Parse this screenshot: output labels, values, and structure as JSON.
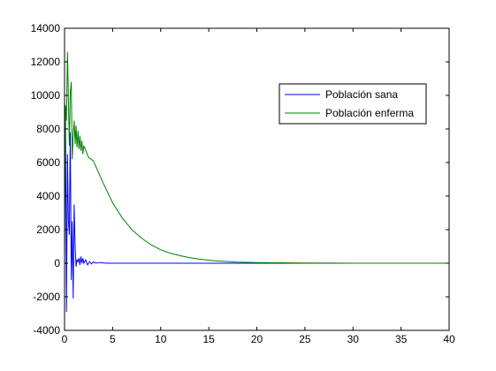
{
  "chart_data": {
    "type": "line",
    "title": "",
    "xlabel": "",
    "ylabel": "",
    "xlim": [
      0,
      40
    ],
    "ylim": [
      -4000,
      14000
    ],
    "xticks": [
      0,
      5,
      10,
      15,
      20,
      25,
      30,
      35,
      40
    ],
    "yticks": [
      -4000,
      -2000,
      0,
      2000,
      4000,
      6000,
      8000,
      10000,
      12000,
      14000
    ],
    "grid": false,
    "legend_position": "top-right",
    "series": [
      {
        "name": "Población sana",
        "color": "#0000ff",
        "x": [
          0,
          0.1,
          0.2,
          0.3,
          0.4,
          0.5,
          0.6,
          0.7,
          0.8,
          0.9,
          1.0,
          1.1,
          1.2,
          1.3,
          1.4,
          1.5,
          1.6,
          1.7,
          1.8,
          1.9,
          2.0,
          2.2,
          2.4,
          2.6,
          2.8,
          3.0,
          3.3,
          3.6,
          4.0,
          4.5,
          5,
          10,
          20,
          30,
          40
        ],
        "y": [
          9600,
          8500,
          -2900,
          6500,
          2600,
          1700,
          7800,
          -1000,
          2500,
          -2100,
          3500,
          1000,
          -200,
          200,
          100,
          300,
          -100,
          400,
          0,
          300,
          0,
          200,
          -100,
          100,
          -50,
          80,
          0,
          40,
          20,
          0,
          0,
          0,
          0,
          0,
          0
        ]
      },
      {
        "name": "Población enferma",
        "color": "#008000",
        "x": [
          0,
          0.1,
          0.2,
          0.3,
          0.4,
          0.5,
          0.6,
          0.7,
          0.8,
          0.9,
          1.0,
          1.1,
          1.2,
          1.3,
          1.4,
          1.5,
          1.6,
          1.7,
          1.8,
          1.9,
          2.0,
          2.5,
          3,
          4,
          5,
          6,
          7,
          8,
          9,
          10,
          11,
          12,
          13,
          14,
          15,
          16,
          17,
          18,
          20,
          25,
          30,
          35,
          40
        ],
        "y": [
          200,
          9400,
          8500,
          12600,
          10000,
          7000,
          10200,
          10800,
          6200,
          7600,
          8500,
          7100,
          8200,
          6900,
          7900,
          6800,
          7600,
          6700,
          7300,
          6500,
          7000,
          6300,
          6100,
          4800,
          3600,
          2700,
          2000,
          1500,
          1100,
          800,
          600,
          450,
          330,
          250,
          180,
          130,
          100,
          70,
          40,
          10,
          0,
          0,
          0
        ]
      }
    ]
  }
}
